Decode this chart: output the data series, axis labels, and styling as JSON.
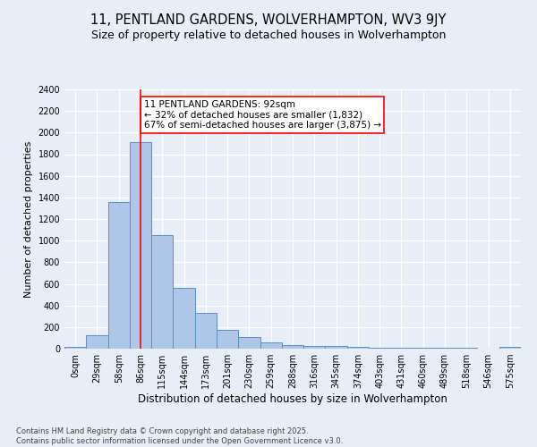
{
  "title1": "11, PENTLAND GARDENS, WOLVERHAMPTON, WV3 9JY",
  "title2": "Size of property relative to detached houses in Wolverhampton",
  "xlabel": "Distribution of detached houses by size in Wolverhampton",
  "ylabel": "Number of detached properties",
  "bin_labels": [
    "0sqm",
    "29sqm",
    "58sqm",
    "86sqm",
    "115sqm",
    "144sqm",
    "173sqm",
    "201sqm",
    "230sqm",
    "259sqm",
    "288sqm",
    "316sqm",
    "345sqm",
    "374sqm",
    "403sqm",
    "431sqm",
    "460sqm",
    "489sqm",
    "518sqm",
    "546sqm",
    "575sqm"
  ],
  "bar_values": [
    15,
    125,
    1360,
    1910,
    1055,
    560,
    335,
    170,
    110,
    60,
    35,
    25,
    25,
    15,
    10,
    5,
    5,
    5,
    5,
    2,
    15
  ],
  "bar_color": "#aec6e8",
  "bar_edge_color": "#5a8fc2",
  "bg_color": "#e8eef8",
  "grid_color": "#ffffff",
  "vline_x": 3.0,
  "vline_color": "red",
  "annotation_text": "11 PENTLAND GARDENS: 92sqm\n← 32% of detached houses are smaller (1,832)\n67% of semi-detached houses are larger (3,875) →",
  "annotation_box_color": "white",
  "annotation_box_edgecolor": "red",
  "ylim": [
    0,
    2400
  ],
  "yticks": [
    0,
    200,
    400,
    600,
    800,
    1000,
    1200,
    1400,
    1600,
    1800,
    2000,
    2200,
    2400
  ],
  "footnote": "Contains HM Land Registry data © Crown copyright and database right 2025.\nContains public sector information licensed under the Open Government Licence v3.0.",
  "title1_fontsize": 10.5,
  "title2_fontsize": 9,
  "xlabel_fontsize": 8.5,
  "ylabel_fontsize": 8,
  "tick_fontsize": 7,
  "annotation_fontsize": 7.5,
  "footnote_fontsize": 6
}
